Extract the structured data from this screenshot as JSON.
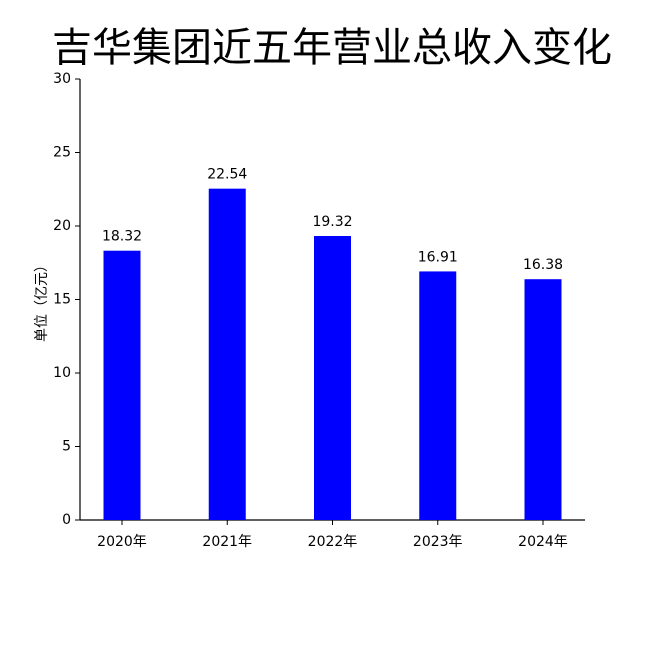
{
  "chart_data": {
    "type": "bar",
    "title": "吉华集团近五年营业总收入变化",
    "y_label": "单位（亿元）",
    "categories": [
      "2020年",
      "2021年",
      "2022年",
      "2023年",
      "2024年"
    ],
    "values": [
      18.32,
      22.54,
      19.32,
      16.91,
      16.38
    ],
    "color": "#0000ff",
    "ylim": [
      0,
      30
    ],
    "yticks": [
      0,
      5,
      10,
      15,
      20,
      25,
      30
    ],
    "grid": false
  }
}
